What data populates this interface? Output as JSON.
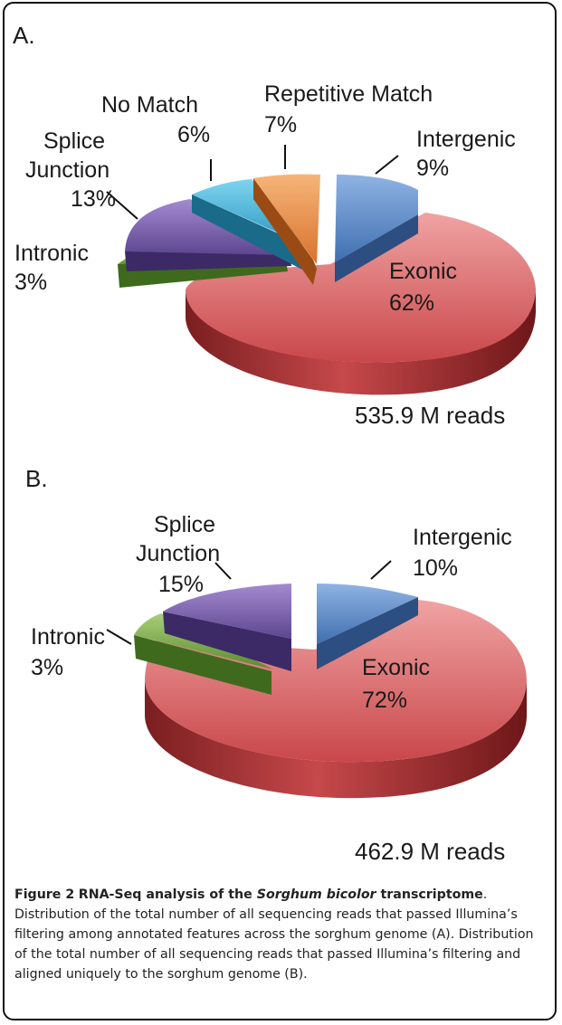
{
  "figure": {
    "caption_number": "Figure 2",
    "caption_title_part1": "RNA-Seq analysis of the ",
    "caption_title_italic": "Sorghum bicolor",
    "caption_title_part2": " transcriptome",
    "caption_body": ". Distribution of the total number of all sequencing reads that passed Illumina’s filtering among annotated features across the sorghum genome (A). Distribution of the total number of all sequencing reads that passed Illumina’s filtering and aligned uniquely to the sorghum genome (B)."
  },
  "chart_data": [
    {
      "type": "pie",
      "panel_label": "A.",
      "total_reads": "535.9 M reads",
      "slices": [
        {
          "name": "Exonic",
          "percent": "62%",
          "value": 62,
          "color": "#c9474a",
          "label_lines": [
            "Exonic",
            "62%"
          ]
        },
        {
          "name": "Intronic",
          "percent": "3%",
          "value": 3,
          "color": "#6f9a3e",
          "label_lines": [
            "Intronic",
            "3%"
          ]
        },
        {
          "name": "Splice Junction",
          "percent": "13%",
          "value": 13,
          "color": "#7b5ea8",
          "label_lines": [
            "Splice",
            "Junction",
            "13%"
          ]
        },
        {
          "name": "No Match",
          "percent": "6%",
          "value": 6,
          "color": "#35a9d1",
          "label_lines": [
            "No Match",
            "6%"
          ]
        },
        {
          "name": "Repetitive Match",
          "percent": "7%",
          "value": 7,
          "color": "#e58a3e",
          "label_lines": [
            "Repetitive Match",
            "7%"
          ]
        },
        {
          "name": "Intergenic",
          "percent": "9%",
          "value": 9,
          "color": "#4f82c0",
          "label_lines": [
            "Intergenic",
            "9%"
          ]
        }
      ]
    },
    {
      "type": "pie",
      "panel_label": "B.",
      "total_reads": "462.9 M reads",
      "slices": [
        {
          "name": "Exonic",
          "percent": "72%",
          "value": 72,
          "color": "#c9474a",
          "label_lines": [
            "Exonic",
            "72%"
          ]
        },
        {
          "name": "Intronic",
          "percent": "3%",
          "value": 3,
          "color": "#6f9a3e",
          "label_lines": [
            "Intronic",
            "3%"
          ]
        },
        {
          "name": "Splice Junction",
          "percent": "15%",
          "value": 15,
          "color": "#7b5ea8",
          "label_lines": [
            "Splice",
            "Junction",
            "15%"
          ]
        },
        {
          "name": "Intergenic",
          "percent": "10%",
          "value": 10,
          "color": "#4f82c0",
          "label_lines": [
            "Intergenic",
            "10%"
          ]
        }
      ]
    }
  ]
}
